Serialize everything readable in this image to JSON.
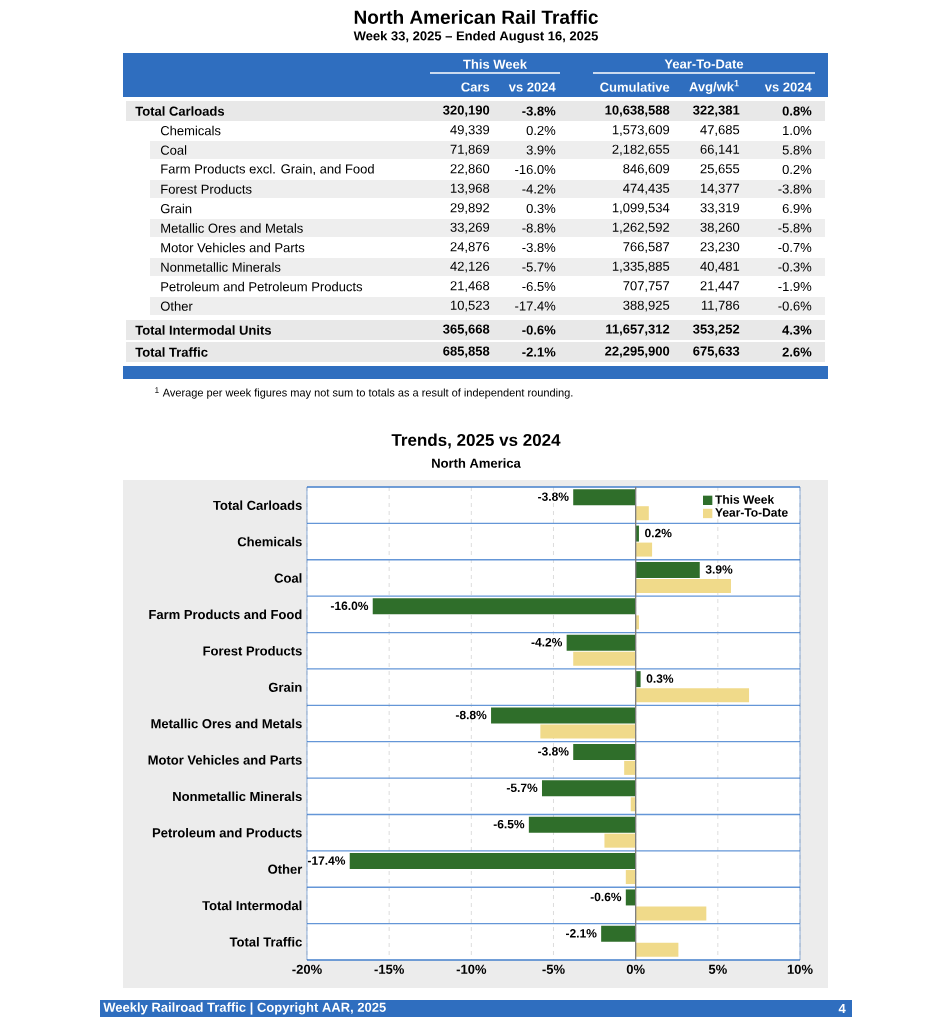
{
  "chart_data": [
    {
      "type": "other",
      "title": "North American Rail Traffic",
      "subtitle": "Week 33, 2025 – Ended August 16, 2025",
      "categories": [
        "Cars",
        "vs 2024",
        "Cumulative",
        "Avg/wk$^{1}$",
        "vs 2024"
      ],
      "y_categories": [
        "Total Carloads",
        "Chemicals",
        "Coal",
        "Farm Products excl. Grain, and Food",
        "Forest Products",
        "Grain",
        "Metallic Ores and Metals",
        "Motor Vehicles and Parts",
        "Nonmetallic Minerals",
        "Petroleum and Petroleum Products",
        "Other",
        "Total Intermodal Units",
        "Total Traffic"
      ],
      "cell_labels": [
        [
          "320,190",
          "-3.8%",
          "10,638,588",
          "322,381",
          "0.8%"
        ],
        [
          "49,339",
          "0.2%",
          "1,573,609",
          "47,685",
          "1.0%"
        ],
        [
          "71,869",
          "3.9%",
          "2,182,655",
          "66,141",
          "5.8%"
        ],
        [
          "22,860",
          "-16.0%",
          "846,609",
          "25,655",
          "0.2%"
        ],
        [
          "13,968",
          "-4.2%",
          "474,435",
          "14,377",
          "-3.8%"
        ],
        [
          "29,892",
          "0.3%",
          "1,099,534",
          "33,319",
          "6.9%"
        ],
        [
          "33,269",
          "-8.8%",
          "1,262,592",
          "38,260",
          "-5.8%"
        ],
        [
          "24,876",
          "-3.8%",
          "766,587",
          "23,230",
          "-0.7%"
        ],
        [
          "42,126",
          "-5.7%",
          "1,335,885",
          "40,481",
          "-0.3%"
        ],
        [
          "21,468",
          "-6.5%",
          "707,757",
          "21,447",
          "-1.9%"
        ],
        [
          "10,523",
          "-17.4%",
          "388,925",
          "11,786",
          "-0.6%"
        ],
        [
          "365,668",
          "-0.6%",
          "11,657,312",
          "353,252",
          "4.3%"
        ],
        [
          "685,858",
          "-2.1%",
          "22,295,900",
          "675,633",
          "2.6%"
        ]
      ],
      "annotations": [
        "This Week",
        "Year-To-Date",
        "$^{1}$ Average per week figures may not sum to totals as a result of independent rounding."
      ]
    },
    {
      "type": "bar",
      "orientation": "horizontal",
      "title": "Trends, 2025 vs 2024",
      "subtitle": "North America",
      "categories": [
        "Total Carloads",
        "Chemicals",
        "Coal",
        "Farm Products and Food",
        "Forest Products",
        "Grain",
        "Metallic Ores and Metals",
        "Motor Vehicles and Parts",
        "Nonmetallic Minerals",
        "Petroleum and Products",
        "Other",
        "Total Intermodal",
        "Total Traffic"
      ],
      "series": [
        {
          "name": "This Week",
          "color": "#2f6e2a",
          "values": [
            -3.8,
            0.2,
            3.9,
            -16.0,
            -4.2,
            0.3,
            -8.8,
            -3.8,
            -5.7,
            -6.5,
            -17.4,
            -0.6,
            -2.1
          ],
          "value_labels": [
            "-3.8%",
            "0.2%",
            "3.9%",
            "-16.0%",
            "-4.2%",
            "0.3%",
            "-8.8%",
            "-3.8%",
            "-5.7%",
            "-6.5%",
            "-17.4%",
            "-0.6%",
            "-2.1%"
          ]
        },
        {
          "name": "Year-To-Date",
          "color": "#f0da8a",
          "values": [
            0.8,
            1.0,
            5.8,
            0.2,
            -3.8,
            6.9,
            -5.8,
            -0.7,
            -0.3,
            -1.9,
            -0.6,
            4.3,
            2.6
          ]
        }
      ],
      "xlim": [
        -20,
        10
      ],
      "xticks": [
        {
          "value": -20,
          "label": "-20%"
        },
        {
          "value": -15,
          "label": "-15%"
        },
        {
          "value": -10,
          "label": "-10%"
        },
        {
          "value": -5,
          "label": "-5%"
        },
        {
          "value": 0,
          "label": "0%"
        },
        {
          "value": 5,
          "label": "5%"
        },
        {
          "value": 10,
          "label": "10%"
        }
      ],
      "grid": true,
      "legend": "top right",
      "annotations": [
        "Weekly Railroad Traffic | Copyright AAR, 2025",
        "4"
      ]
    }
  ]
}
